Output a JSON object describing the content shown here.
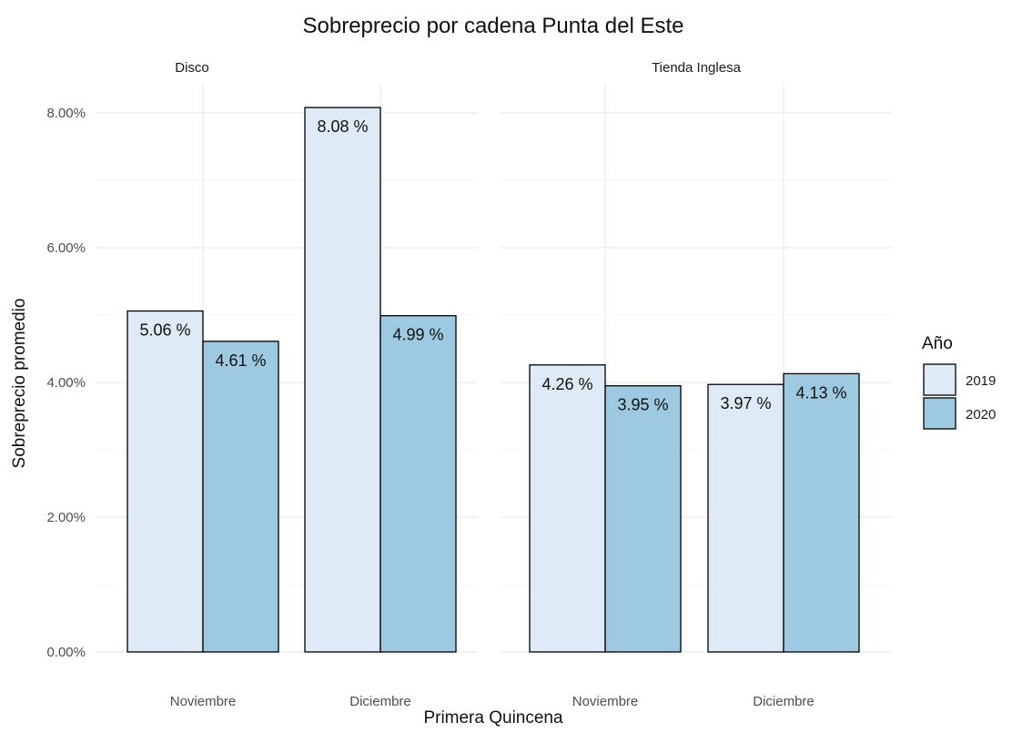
{
  "chart_data": {
    "type": "bar",
    "title": "Sobreprecio por cadena Punta del Este",
    "xlabel": "Primera Quincena",
    "ylabel": "Sobreprecio promedio",
    "ylim": [
      0,
      0.085
    ],
    "y_ticks": [
      0.0,
      0.02,
      0.04,
      0.06,
      0.08
    ],
    "y_tick_labels": [
      "0.00%",
      "2.00%",
      "4.00%",
      "6.00%",
      "8.00%"
    ],
    "grid": true,
    "legend": {
      "title": "Año",
      "position": "right",
      "entries": [
        {
          "label": "2019",
          "color": "#deebf7"
        },
        {
          "label": "2020",
          "color": "#9ecae1"
        }
      ]
    },
    "facets": [
      {
        "name": "Disco",
        "categories": [
          "Noviembre",
          "Diciembre"
        ],
        "series": [
          {
            "name": "2019",
            "values": [
              0.0506,
              0.0808
            ],
            "labels": [
              "5.06 %",
              "8.08 %"
            ]
          },
          {
            "name": "2020",
            "values": [
              0.0461,
              0.0499
            ],
            "labels": [
              "4.61 %",
              "4.99 %"
            ]
          }
        ]
      },
      {
        "name": "Tienda Inglesa",
        "categories": [
          "Noviembre",
          "Diciembre"
        ],
        "series": [
          {
            "name": "2019",
            "values": [
              0.0426,
              0.0397
            ],
            "labels": [
              "4.26 %",
              "3.97 %"
            ]
          },
          {
            "name": "2020",
            "values": [
              0.0395,
              0.0413
            ],
            "labels": [
              "3.95 %",
              "4.13 %"
            ]
          }
        ]
      }
    ]
  }
}
